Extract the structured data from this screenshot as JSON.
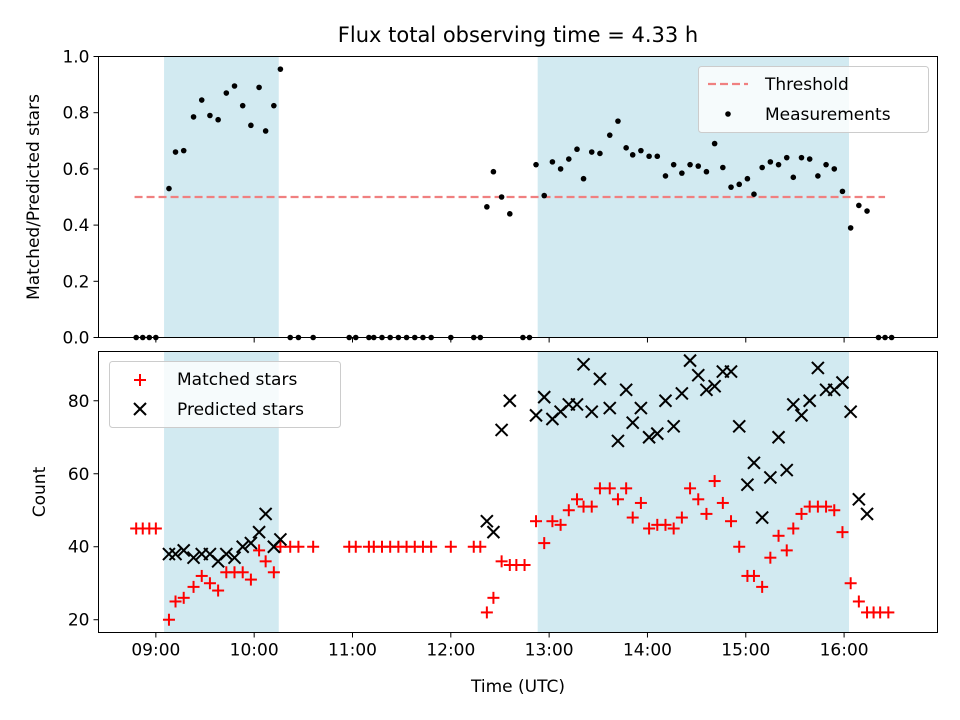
{
  "title": "Flux total observing time = 4.33 h",
  "colors": {
    "shade": "#add8e6",
    "threshold": "#f08080",
    "measurement": "#000000",
    "matched": "#ff0000",
    "predicted": "#000000"
  },
  "chart_data": [
    {
      "type": "scatter",
      "panel": "top",
      "ylabel": "Matched/Predicted stars",
      "xlabel": "",
      "xlim": [
        "08:25",
        "16:57"
      ],
      "ylim": [
        0,
        1.0
      ],
      "yticks": [
        0.0,
        0.2,
        0.4,
        0.6,
        0.8,
        1.0
      ],
      "ytick_labels": [
        "0.0",
        "0.2",
        "0.4",
        "0.6",
        "0.8",
        "1.0"
      ],
      "xticks": [
        "09:00",
        "10:00",
        "11:00",
        "12:00",
        "13:00",
        "14:00",
        "15:00",
        "16:00"
      ],
      "shaded_ranges": [
        [
          "09:05",
          "10:15"
        ],
        [
          "12:53",
          "16:03"
        ]
      ],
      "legend_position": "top-right",
      "legend": [
        "Threshold",
        "Measurements"
      ],
      "threshold": {
        "name": "Threshold",
        "y": 0.5,
        "x_range": [
          "08:47",
          "16:25"
        ]
      },
      "series": [
        {
          "name": "Measurements",
          "points": [
            [
              "08:48",
              0.0
            ],
            [
              "08:52",
              0.0
            ],
            [
              "08:56",
              0.0
            ],
            [
              "09:00",
              0.0
            ],
            [
              "09:08",
              0.53
            ],
            [
              "09:12",
              0.66
            ],
            [
              "09:17",
              0.665
            ],
            [
              "09:23",
              0.785
            ],
            [
              "09:28",
              0.845
            ],
            [
              "09:33",
              0.79
            ],
            [
              "09:38",
              0.775
            ],
            [
              "09:43",
              0.87
            ],
            [
              "09:48",
              0.895
            ],
            [
              "09:53",
              0.825
            ],
            [
              "09:58",
              0.755
            ],
            [
              "10:03",
              0.89
            ],
            [
              "10:07",
              0.735
            ],
            [
              "10:12",
              0.825
            ],
            [
              "10:16",
              0.955
            ],
            [
              "10:22",
              0.0
            ],
            [
              "10:27",
              0.0
            ],
            [
              "10:36",
              0.0
            ],
            [
              "10:58",
              0.0
            ],
            [
              "11:02",
              0.0
            ],
            [
              "11:10",
              0.0
            ],
            [
              "11:13",
              0.0
            ],
            [
              "11:18",
              0.0
            ],
            [
              "11:23",
              0.0
            ],
            [
              "11:28",
              0.0
            ],
            [
              "11:33",
              0.0
            ],
            [
              "11:38",
              0.0
            ],
            [
              "11:43",
              0.0
            ],
            [
              "11:48",
              0.0
            ],
            [
              "12:00",
              0.0
            ],
            [
              "12:14",
              0.0
            ],
            [
              "12:18",
              0.0
            ],
            [
              "12:22",
              0.465
            ],
            [
              "12:26",
              0.59
            ],
            [
              "12:31",
              0.5
            ],
            [
              "12:36",
              0.44
            ],
            [
              "12:44",
              0.0
            ],
            [
              "12:48",
              0.0
            ],
            [
              "12:52",
              0.615
            ],
            [
              "12:57",
              0.505
            ],
            [
              "13:02",
              0.625
            ],
            [
              "13:07",
              0.6
            ],
            [
              "13:12",
              0.635
            ],
            [
              "13:17",
              0.67
            ],
            [
              "13:21",
              0.565
            ],
            [
              "13:26",
              0.66
            ],
            [
              "13:31",
              0.655
            ],
            [
              "13:37",
              0.72
            ],
            [
              "13:42",
              0.77
            ],
            [
              "13:47",
              0.675
            ],
            [
              "13:51",
              0.65
            ],
            [
              "13:56",
              0.665
            ],
            [
              "14:01",
              0.645
            ],
            [
              "14:06",
              0.645
            ],
            [
              "14:11",
              0.575
            ],
            [
              "14:16",
              0.615
            ],
            [
              "14:21",
              0.585
            ],
            [
              "14:26",
              0.615
            ],
            [
              "14:31",
              0.61
            ],
            [
              "14:36",
              0.59
            ],
            [
              "14:41",
              0.69
            ],
            [
              "14:46",
              0.605
            ],
            [
              "14:51",
              0.535
            ],
            [
              "14:56",
              0.545
            ],
            [
              "15:01",
              0.565
            ],
            [
              "15:05",
              0.51
            ],
            [
              "15:10",
              0.605
            ],
            [
              "15:15",
              0.625
            ],
            [
              "15:20",
              0.615
            ],
            [
              "15:25",
              0.64
            ],
            [
              "15:29",
              0.57
            ],
            [
              "15:34",
              0.64
            ],
            [
              "15:39",
              0.635
            ],
            [
              "15:44",
              0.575
            ],
            [
              "15:49",
              0.615
            ],
            [
              "15:54",
              0.6
            ],
            [
              "15:59",
              0.52
            ],
            [
              "16:04",
              0.39
            ],
            [
              "16:09",
              0.47
            ],
            [
              "16:14",
              0.45
            ],
            [
              "16:21",
              0.0
            ],
            [
              "16:25",
              0.0
            ],
            [
              "16:29",
              0.0
            ]
          ]
        }
      ]
    },
    {
      "type": "scatter",
      "panel": "bottom",
      "ylabel": "Count",
      "xlabel": "Time (UTC)",
      "xlim": [
        "08:25",
        "16:57"
      ],
      "ylim": [
        16.5,
        93.5
      ],
      "yticks": [
        20,
        40,
        60,
        80
      ],
      "ytick_labels": [
        "20",
        "40",
        "60",
        "80"
      ],
      "xticks": [
        "09:00",
        "10:00",
        "11:00",
        "12:00",
        "13:00",
        "14:00",
        "15:00",
        "16:00"
      ],
      "xtick_labels": [
        "09:00",
        "10:00",
        "11:00",
        "12:00",
        "13:00",
        "14:00",
        "15:00",
        "16:00"
      ],
      "shaded_ranges": [
        [
          "09:05",
          "10:15"
        ],
        [
          "12:53",
          "16:03"
        ]
      ],
      "legend_position": "top-left",
      "legend": [
        "Matched stars",
        "Predicted stars"
      ],
      "series": [
        {
          "name": "Matched stars",
          "marker": "+",
          "points": [
            [
              "08:48",
              45
            ],
            [
              "08:52",
              45
            ],
            [
              "08:56",
              45
            ],
            [
              "09:00",
              45
            ],
            [
              "09:08",
              20
            ],
            [
              "09:12",
              25
            ],
            [
              "09:17",
              26
            ],
            [
              "09:23",
              29
            ],
            [
              "09:28",
              32
            ],
            [
              "09:33",
              30
            ],
            [
              "09:38",
              28
            ],
            [
              "09:43",
              33
            ],
            [
              "09:48",
              33
            ],
            [
              "09:53",
              33
            ],
            [
              "09:58",
              31
            ],
            [
              "10:03",
              39
            ],
            [
              "10:07",
              36
            ],
            [
              "10:12",
              33
            ],
            [
              "10:16",
              40
            ],
            [
              "10:22",
              40
            ],
            [
              "10:27",
              40
            ],
            [
              "10:36",
              40
            ],
            [
              "10:58",
              40
            ],
            [
              "11:02",
              40
            ],
            [
              "11:10",
              40
            ],
            [
              "11:13",
              40
            ],
            [
              "11:18",
              40
            ],
            [
              "11:23",
              40
            ],
            [
              "11:28",
              40
            ],
            [
              "11:33",
              40
            ],
            [
              "11:38",
              40
            ],
            [
              "11:43",
              40
            ],
            [
              "11:48",
              40
            ],
            [
              "12:00",
              40
            ],
            [
              "12:14",
              40
            ],
            [
              "12:18",
              40
            ],
            [
              "12:22",
              22
            ],
            [
              "12:26",
              26
            ],
            [
              "12:31",
              36
            ],
            [
              "12:36",
              35
            ],
            [
              "12:40",
              35
            ],
            [
              "12:45",
              35
            ],
            [
              "12:52",
              47
            ],
            [
              "12:57",
              41
            ],
            [
              "13:02",
              47
            ],
            [
              "13:07",
              46
            ],
            [
              "13:12",
              50
            ],
            [
              "13:17",
              53
            ],
            [
              "13:21",
              51
            ],
            [
              "13:26",
              51
            ],
            [
              "13:31",
              56
            ],
            [
              "13:37",
              56
            ],
            [
              "13:42",
              53
            ],
            [
              "13:47",
              56
            ],
            [
              "13:51",
              48
            ],
            [
              "13:56",
              52
            ],
            [
              "14:01",
              45
            ],
            [
              "14:06",
              46
            ],
            [
              "14:11",
              46
            ],
            [
              "14:16",
              45
            ],
            [
              "14:21",
              48
            ],
            [
              "14:26",
              56
            ],
            [
              "14:31",
              53
            ],
            [
              "14:36",
              49
            ],
            [
              "14:41",
              58
            ],
            [
              "14:46",
              52
            ],
            [
              "14:51",
              47
            ],
            [
              "14:56",
              40
            ],
            [
              "15:01",
              32
            ],
            [
              "15:05",
              32
            ],
            [
              "15:10",
              29
            ],
            [
              "15:15",
              37
            ],
            [
              "15:20",
              43
            ],
            [
              "15:25",
              39
            ],
            [
              "15:29",
              45
            ],
            [
              "15:34",
              49
            ],
            [
              "15:39",
              51
            ],
            [
              "15:44",
              51
            ],
            [
              "15:49",
              51
            ],
            [
              "15:54",
              50
            ],
            [
              "15:59",
              44
            ],
            [
              "16:04",
              30
            ],
            [
              "16:09",
              25
            ],
            [
              "16:14",
              22
            ],
            [
              "16:18",
              22
            ],
            [
              "16:22",
              22
            ],
            [
              "16:27",
              22
            ]
          ]
        },
        {
          "name": "Predicted stars",
          "marker": "x",
          "points": [
            [
              "09:08",
              38
            ],
            [
              "09:12",
              38
            ],
            [
              "09:17",
              39
            ],
            [
              "09:23",
              37
            ],
            [
              "09:28",
              38
            ],
            [
              "09:33",
              38
            ],
            [
              "09:38",
              36
            ],
            [
              "09:43",
              38
            ],
            [
              "09:48",
              37
            ],
            [
              "09:53",
              40
            ],
            [
              "09:58",
              41
            ],
            [
              "10:03",
              44
            ],
            [
              "10:07",
              49
            ],
            [
              "10:12",
              40
            ],
            [
              "10:16",
              42
            ],
            [
              "12:22",
              47
            ],
            [
              "12:26",
              44
            ],
            [
              "12:31",
              72
            ],
            [
              "12:36",
              80
            ],
            [
              "12:52",
              76
            ],
            [
              "12:57",
              81
            ],
            [
              "13:02",
              75
            ],
            [
              "13:07",
              77
            ],
            [
              "13:12",
              79
            ],
            [
              "13:17",
              79
            ],
            [
              "13:21",
              90
            ],
            [
              "13:26",
              77
            ],
            [
              "13:31",
              86
            ],
            [
              "13:37",
              78
            ],
            [
              "13:42",
              69
            ],
            [
              "13:47",
              83
            ],
            [
              "13:51",
              74
            ],
            [
              "13:56",
              78
            ],
            [
              "14:01",
              70
            ],
            [
              "14:06",
              71
            ],
            [
              "14:11",
              80
            ],
            [
              "14:16",
              73
            ],
            [
              "14:21",
              82
            ],
            [
              "14:26",
              91
            ],
            [
              "14:31",
              87
            ],
            [
              "14:36",
              83
            ],
            [
              "14:41",
              84
            ],
            [
              "14:46",
              88
            ],
            [
              "14:51",
              88
            ],
            [
              "14:56",
              73
            ],
            [
              "15:01",
              57
            ],
            [
              "15:05",
              63
            ],
            [
              "15:10",
              48
            ],
            [
              "15:15",
              59
            ],
            [
              "15:20",
              70
            ],
            [
              "15:25",
              61
            ],
            [
              "15:29",
              79
            ],
            [
              "15:34",
              76
            ],
            [
              "15:39",
              80
            ],
            [
              "15:44",
              89
            ],
            [
              "15:49",
              83
            ],
            [
              "15:54",
              83
            ],
            [
              "15:59",
              85
            ],
            [
              "16:04",
              77
            ],
            [
              "16:09",
              53
            ],
            [
              "16:14",
              49
            ]
          ]
        }
      ]
    }
  ]
}
